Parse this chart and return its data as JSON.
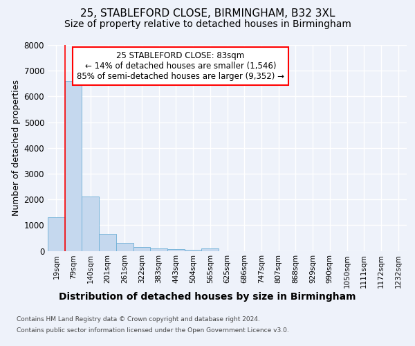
{
  "title1": "25, STABLEFORD CLOSE, BIRMINGHAM, B32 3XL",
  "title2": "Size of property relative to detached houses in Birmingham",
  "xlabel": "Distribution of detached houses by size in Birmingham",
  "ylabel": "Number of detached properties",
  "footnote1": "Contains HM Land Registry data © Crown copyright and database right 2024.",
  "footnote2": "Contains public sector information licensed under the Open Government Licence v3.0.",
  "annotation_line1": "25 STABLEFORD CLOSE: 83sqm",
  "annotation_line2": "← 14% of detached houses are smaller (1,546)",
  "annotation_line3": "85% of semi-detached houses are larger (9,352) →",
  "bar_labels": [
    "19sqm",
    "79sqm",
    "140sqm",
    "201sqm",
    "261sqm",
    "322sqm",
    "383sqm",
    "443sqm",
    "504sqm",
    "565sqm",
    "625sqm",
    "686sqm",
    "747sqm",
    "807sqm",
    "868sqm",
    "929sqm",
    "990sqm",
    "1050sqm",
    "1111sqm",
    "1172sqm",
    "1232sqm"
  ],
  "bar_values": [
    1300,
    6600,
    2100,
    650,
    310,
    150,
    100,
    75,
    50,
    100,
    0,
    0,
    0,
    0,
    0,
    0,
    0,
    0,
    0,
    0,
    0
  ],
  "bar_color": "#c5d8ee",
  "bar_edge_color": "#6baed6",
  "red_line_x": 0.5,
  "ylim": [
    0,
    8000
  ],
  "yticks": [
    0,
    1000,
    2000,
    3000,
    4000,
    5000,
    6000,
    7000,
    8000
  ],
  "bg_color": "#eef2fa",
  "plot_bg_color": "#eef2fa",
  "grid_color": "#ffffff",
  "title1_fontsize": 11,
  "title2_fontsize": 10,
  "xlabel_fontsize": 10,
  "ylabel_fontsize": 9,
  "ann_fontsize": 8.5
}
